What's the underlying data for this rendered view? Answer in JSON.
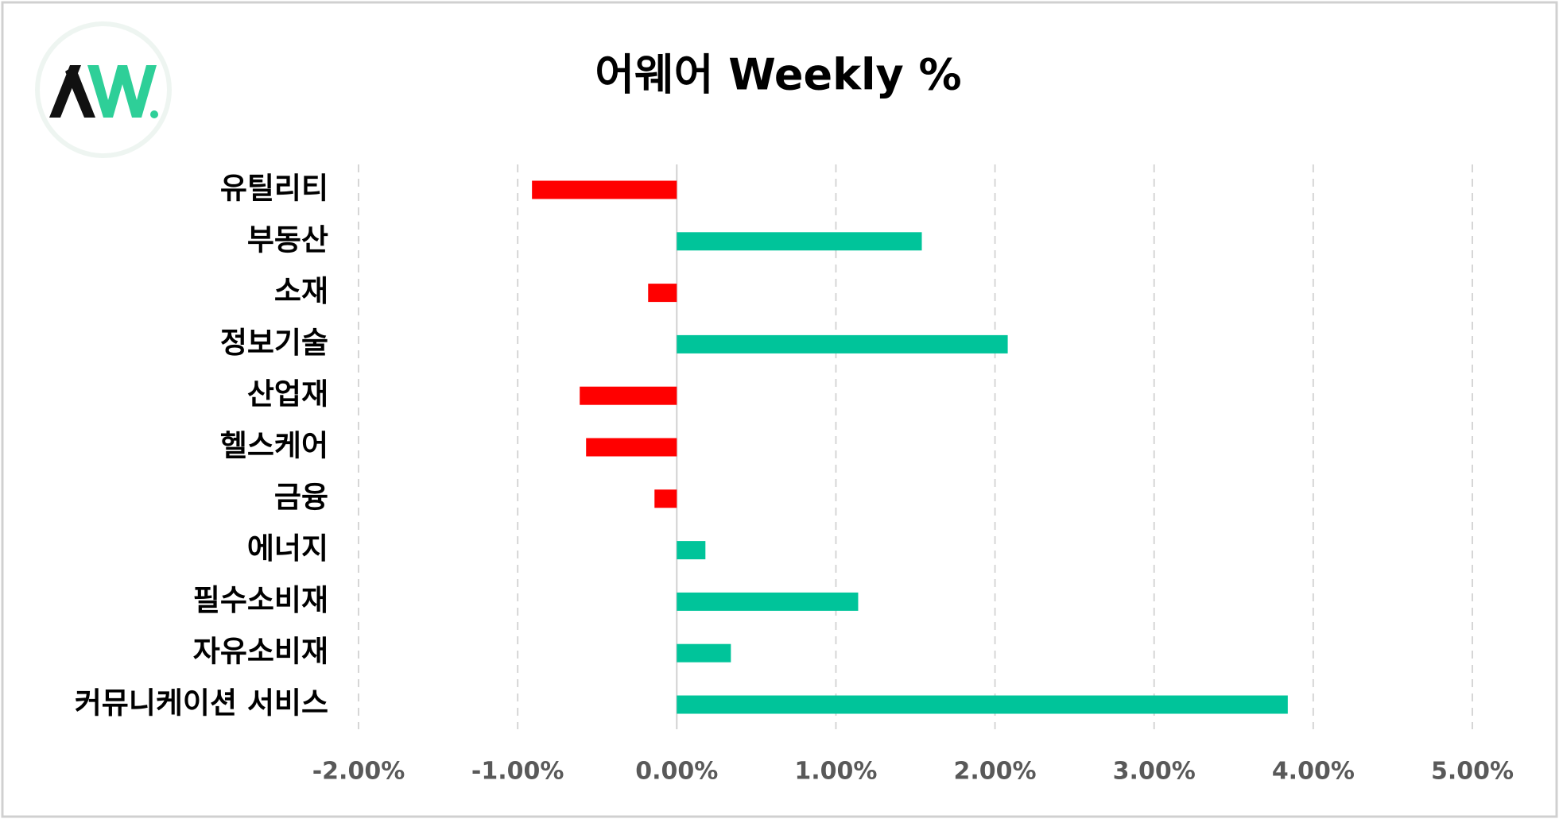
{
  "chart_data": {
    "type": "barh",
    "title": "어웨어 Weekly %",
    "categories": [
      "유틸리티",
      "부동산",
      "소재",
      "정보기술",
      "산업재",
      "헬스케어",
      "금융",
      "에너지",
      "필수소비재",
      "자유소비재",
      "커뮤니케이션 서비스"
    ],
    "values": [
      -0.91,
      1.54,
      -0.18,
      2.08,
      -0.61,
      -0.57,
      -0.14,
      0.18,
      1.14,
      0.34,
      3.84
    ],
    "color": "#00c49a",
    "negative_color": "#ff0000",
    "xlim": [
      -2,
      5
    ],
    "xticks": [
      {
        "value": -2,
        "label": "-2.00%"
      },
      {
        "value": -1,
        "label": "-1.00%"
      },
      {
        "value": 0,
        "label": "0.00%"
      },
      {
        "value": 1,
        "label": "1.00%"
      },
      {
        "value": 2,
        "label": "2.00%"
      },
      {
        "value": 3,
        "label": "3.00%"
      },
      {
        "value": 4,
        "label": "4.00%"
      },
      {
        "value": 5,
        "label": "5.00%"
      }
    ],
    "grid": true
  }
}
